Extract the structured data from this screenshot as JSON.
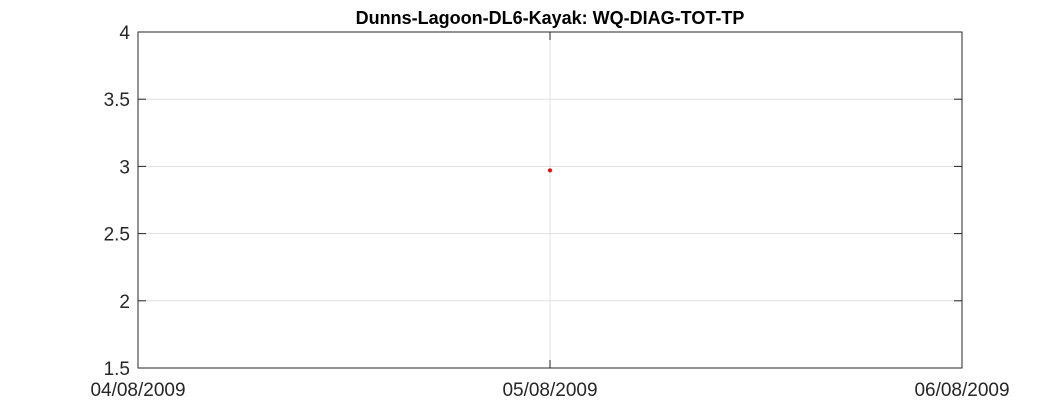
{
  "chart_data": {
    "type": "scatter",
    "title": "Dunns-Lagoon-DL6-Kayak: WQ-DIAG-TOT-TP",
    "xlabel": "",
    "ylabel": "",
    "x_ticks": [
      "04/08/2009",
      "05/08/2009",
      "06/08/2009"
    ],
    "xlim": [
      "04/08/2009",
      "06/08/2009"
    ],
    "y_ticks": [
      "1.5",
      "2",
      "2.5",
      "3",
      "3.5",
      "4"
    ],
    "ylim": [
      1.5,
      4
    ],
    "grid": true,
    "legend": "none",
    "series": [
      {
        "color": "#ff0000",
        "points": [
          {
            "x": "05/08/2009",
            "y": 2.97
          }
        ]
      }
    ]
  }
}
